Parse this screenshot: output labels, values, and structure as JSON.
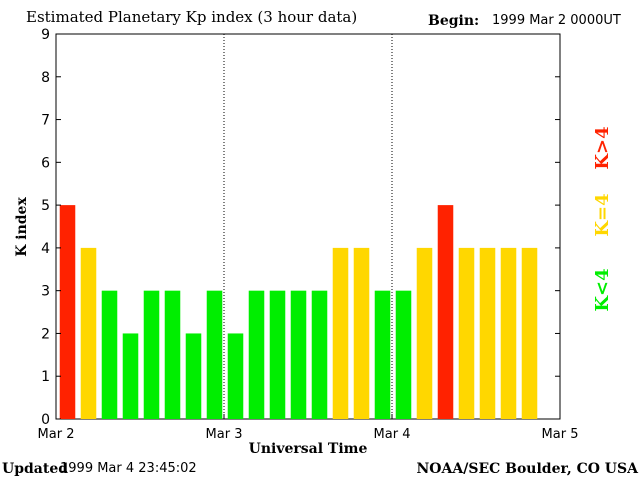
{
  "header": {
    "title": "Estimated Planetary Kp index (3 hour data)",
    "begin_label": "Begin:",
    "begin_value": "1999 Mar 2 0000UT"
  },
  "footer": {
    "updated_label": "Updated",
    "updated_value": "1999 Mar  4 23:45:02",
    "credit": "NOAA/SEC Boulder, CO USA"
  },
  "colors": {
    "low": "#00ee00",
    "moderate": "#ffd700",
    "high": "#ff2200"
  },
  "legend": [
    {
      "label": "K<4",
      "level": "low"
    },
    {
      "label": "K=4",
      "level": "moderate"
    },
    {
      "label": "K>4",
      "level": "high"
    }
  ],
  "chart_data": {
    "type": "bar",
    "title": "Estimated Planetary Kp index (3 hour data)",
    "xlabel": "Universal Time",
    "ylabel": "K index",
    "ylim": [
      0,
      9
    ],
    "yticks": [
      "0",
      "1",
      "2",
      "3",
      "4",
      "5",
      "6",
      "7",
      "8",
      "9"
    ],
    "xlim": [
      0,
      72
    ],
    "xticks": [
      {
        "label": "Mar 2",
        "hour": 0
      },
      {
        "label": "Mar 3",
        "hour": 24
      },
      {
        "label": "Mar 4",
        "hour": 48
      },
      {
        "label": "Mar 5",
        "hour": 72
      }
    ],
    "day_dividers": [
      24,
      48
    ],
    "values": [
      5,
      4,
      3,
      2,
      3,
      3,
      2,
      3,
      2,
      3,
      3,
      3,
      3,
      4,
      4,
      3,
      3,
      4,
      5,
      4,
      4,
      4,
      4
    ],
    "legend_position": "right"
  }
}
